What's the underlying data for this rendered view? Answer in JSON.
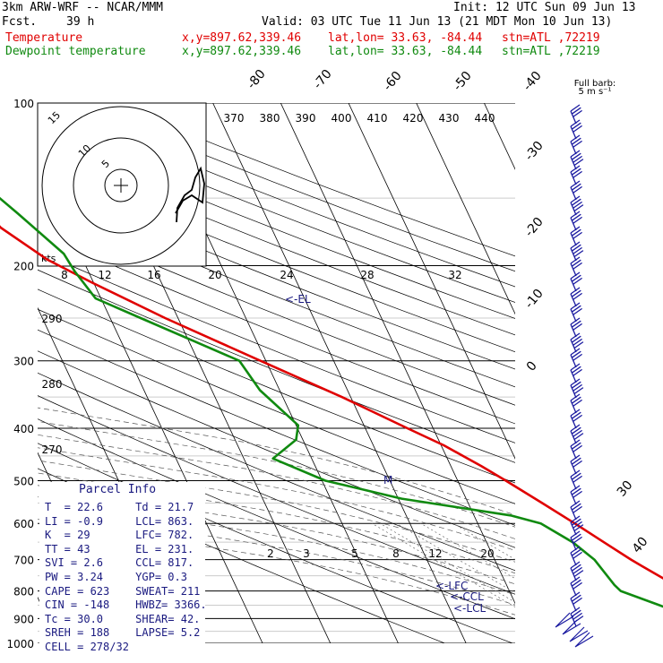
{
  "header": {
    "model": "3km ARW-WRF -- NCAR/MMM",
    "init": "Init: 12 UTC Sun 09 Jun 13",
    "fcst_label": "Fcst.",
    "fcst_value": "39 h",
    "valid": "Valid: 03 UTC Tue 11 Jun 13 (21 MDT Mon 10 Jun 13)",
    "temp_label": "Temperature",
    "dew_label": "Dewpoint temperature",
    "xy": "x,y=897.62,339.46",
    "latlon": "lat,lon= 33.63, -84.44",
    "stn": "stn=ATL ,72219"
  },
  "wind": {
    "full_barb": "Full barb:",
    "unit": "5 m s⁻¹"
  },
  "hodo": {
    "kts": "kts",
    "ring_labels": [
      "5",
      "10",
      "15"
    ]
  },
  "parcel": {
    "title": "Parcel Info",
    "rows": [
      [
        "T  =",
        "22.6",
        "Td =",
        "21.7"
      ],
      [
        "LI =",
        "-0.9",
        "LCL=",
        "863."
      ],
      [
        "K  =",
        "29",
        "LFC=",
        "782."
      ],
      [
        "TT =",
        "43",
        "EL =",
        "231."
      ],
      [
        "SVI =",
        "2.6",
        "CCL=",
        "817."
      ],
      [
        "PW =",
        "3.24",
        "YGP=",
        "0.3"
      ],
      [
        "CAPE =",
        "623",
        "SWEAT=",
        "211"
      ],
      [
        "CIN =",
        "-148",
        "HWBZ=",
        "3366."
      ],
      [
        "Tc =",
        "30.0",
        "SHEAR=",
        "42."
      ],
      [
        "SREH =",
        "188",
        "LAPSE=",
        "5.2"
      ],
      [
        "CELL =",
        "278/32",
        "",
        ""
      ]
    ]
  },
  "chart_data": {
    "type": "line",
    "title": "",
    "y_axis_ticks": [
      "100",
      "200",
      "300",
      "400",
      "500",
      "600",
      "700",
      "800",
      "900",
      "1000"
    ],
    "pressure_levels": [
      100,
      200,
      300,
      400,
      500,
      600,
      700,
      800,
      900,
      1000
    ],
    "isotherm_labels": [
      "-80",
      "-70",
      "-60",
      "-50",
      "-40",
      "-30",
      "-20",
      "-10",
      "0",
      "30",
      "40"
    ],
    "theta_labels": [
      "370",
      "380",
      "390",
      "400",
      "410",
      "420",
      "430",
      "440"
    ],
    "mixratio_labels_upper": [
      "8",
      "12",
      "16",
      "20",
      "24",
      "28",
      "32"
    ],
    "mixratio_labels_lower": [
      "2",
      "3",
      "5",
      "8",
      "12",
      "20"
    ],
    "theta_e_labels": [
      "290",
      "280",
      "270"
    ],
    "level_markers": [
      "<-EL",
      "<-LFC",
      "<-CCL",
      "<-LCL",
      "M"
    ],
    "series": [
      {
        "name": "Temperature",
        "color": "#e00000",
        "points": [
          [
            990,
            23.8
          ],
          [
            970,
            24.8
          ],
          [
            950,
            23.4
          ],
          [
            920,
            22.2
          ],
          [
            895,
            21.2
          ],
          [
            850,
            18.5
          ],
          [
            800,
            16.6
          ],
          [
            780,
            14.8
          ],
          [
            720,
            11.3
          ],
          [
            700,
            10.1
          ],
          [
            650,
            7.3
          ],
          [
            600,
            4.3
          ],
          [
            550,
            0.9
          ],
          [
            500,
            -2.9
          ],
          [
            470,
            -5.5
          ],
          [
            430,
            -9.6
          ],
          [
            400,
            -13.8
          ],
          [
            350,
            -21.3
          ],
          [
            300,
            -30.8
          ],
          [
            250,
            -41.9
          ],
          [
            215,
            -50.2
          ],
          [
            195,
            -55.2
          ],
          [
            170,
            -59.9
          ],
          [
            150,
            -61.6
          ],
          [
            130,
            -64.2
          ],
          [
            110,
            -67.2
          ],
          [
            100,
            -69.1
          ]
        ]
      },
      {
        "name": "Dewpoint temperature",
        "color": "#108a10",
        "points": [
          [
            975,
            22.5
          ],
          [
            960,
            19.2
          ],
          [
            935,
            17.2
          ],
          [
            905,
            15.0
          ],
          [
            880,
            13.8
          ],
          [
            850,
            11.1
          ],
          [
            800,
            6.4
          ],
          [
            780,
            5.9
          ],
          [
            700,
            4.7
          ],
          [
            650,
            2.7
          ],
          [
            600,
            -0.7
          ],
          [
            580,
            -4.6
          ],
          [
            540,
            -19.5
          ],
          [
            500,
            -29.5
          ],
          [
            455,
            -35.7
          ],
          [
            420,
            -31.0
          ],
          [
            395,
            -29.7
          ],
          [
            340,
            -32.9
          ],
          [
            300,
            -33.9
          ],
          [
            250,
            -45.5
          ],
          [
            230,
            -50.8
          ],
          [
            205,
            -52.0
          ],
          [
            190,
            -52.4
          ],
          [
            160,
            -56.4
          ],
          [
            150,
            -58.0
          ],
          [
            130,
            -61.1
          ],
          [
            110,
            -66.4
          ],
          [
            100,
            -69.6
          ]
        ]
      }
    ]
  },
  "colors": {
    "temperature": "#e00000",
    "dewpoint": "#108a10",
    "text_blue": "#1a1a80",
    "barbs": "#1a1aa0"
  }
}
